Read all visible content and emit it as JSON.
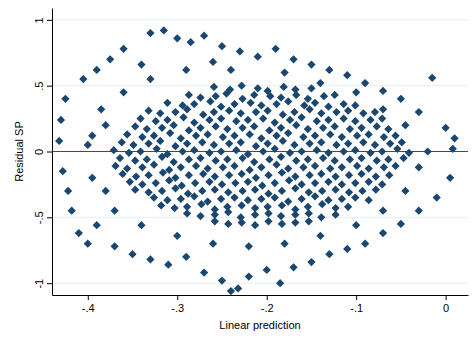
{
  "chart_data": {
    "type": "scatter",
    "xlabel": "Linear prediction",
    "ylabel": "Residual SP",
    "xlim": [
      -0.44,
      0.025
    ],
    "ylim": [
      -1.09,
      1.09
    ],
    "xticks": [
      {
        "value": -0.4,
        "label": "-.4"
      },
      {
        "value": -0.3,
        "label": "-.3"
      },
      {
        "value": -0.2,
        "label": "-.2"
      },
      {
        "value": -0.1,
        "label": "-.1"
      },
      0
    ],
    "yticks": [
      -1,
      {
        "value": -0.5,
        "label": "-.5"
      },
      0,
      {
        "value": 0.5,
        "label": ".5"
      },
      1
    ],
    "grid": true,
    "series": [
      {
        "type": "line",
        "line_style": "solid",
        "color": "#c8102e",
        "x": [
          -0.44,
          0.025
        ],
        "values": [
          0,
          0
        ]
      },
      {
        "type": "scatter",
        "marker": "diamond",
        "color": "#1a476f",
        "x": [
          -0.259,
          -0.241,
          -0.228,
          -0.21,
          -0.199,
          -0.181,
          -0.168,
          -0.15,
          -0.287,
          -0.274,
          -0.257,
          -0.245,
          -0.227,
          -0.214,
          -0.196,
          -0.184,
          -0.167,
          -0.154,
          -0.136,
          -0.124,
          -0.311,
          -0.294,
          -0.281,
          -0.263,
          -0.251,
          -0.236,
          -0.218,
          -0.206,
          -0.189,
          -0.176,
          -0.158,
          -0.146,
          -0.131,
          -0.114,
          -0.101,
          -0.332,
          -0.319,
          -0.302,
          -0.289,
          -0.271,
          -0.259,
          -0.242,
          -0.229,
          -0.212,
          -0.199,
          -0.182,
          -0.169,
          -0.152,
          -0.139,
          -0.122,
          -0.109,
          -0.092,
          -0.079,
          -0.341,
          -0.324,
          -0.311,
          -0.293,
          -0.281,
          -0.264,
          -0.251,
          -0.234,
          -0.221,
          -0.204,
          -0.191,
          -0.174,
          -0.161,
          -0.144,
          -0.131,
          -0.114,
          -0.101,
          -0.084,
          -0.071,
          -0.347,
          -0.334,
          -0.317,
          -0.304,
          -0.287,
          -0.274,
          -0.257,
          -0.244,
          -0.227,
          -0.214,
          -0.197,
          -0.184,
          -0.167,
          -0.154,
          -0.137,
          -0.124,
          -0.107,
          -0.094,
          -0.077,
          -0.064,
          -0.356,
          -0.339,
          -0.326,
          -0.308,
          -0.296,
          -0.279,
          -0.266,
          -0.249,
          -0.236,
          -0.219,
          -0.206,
          -0.189,
          -0.176,
          -0.159,
          -0.146,
          -0.129,
          -0.116,
          -0.099,
          -0.086,
          -0.069,
          -0.056,
          -0.362,
          -0.349,
          -0.332,
          -0.319,
          -0.302,
          -0.289,
          -0.272,
          -0.259,
          -0.242,
          -0.229,
          -0.212,
          -0.199,
          -0.182,
          -0.169,
          -0.152,
          -0.139,
          -0.122,
          -0.109,
          -0.092,
          -0.079,
          -0.062,
          -0.049,
          -0.371,
          -0.354,
          -0.341,
          -0.323,
          -0.311,
          -0.294,
          -0.281,
          -0.264,
          -0.251,
          -0.234,
          -0.221,
          -0.204,
          -0.191,
          -0.174,
          -0.161,
          -0.144,
          -0.131,
          -0.114,
          -0.101,
          -0.084,
          -0.071,
          -0.054,
          -0.041,
          -0.364,
          -0.347,
          -0.334,
          -0.317,
          -0.304,
          -0.287,
          -0.274,
          -0.257,
          -0.244,
          -0.227,
          -0.214,
          -0.197,
          -0.184,
          -0.167,
          -0.154,
          -0.137,
          -0.124,
          -0.107,
          -0.094,
          -0.077,
          -0.064,
          -0.047,
          -0.369,
          -0.356,
          -0.339,
          -0.326,
          -0.309,
          -0.296,
          -0.279,
          -0.266,
          -0.249,
          -0.236,
          -0.219,
          -0.206,
          -0.189,
          -0.176,
          -0.159,
          -0.146,
          -0.129,
          -0.116,
          -0.099,
          -0.086,
          -0.069,
          -0.056,
          -0.361,
          -0.346,
          -0.332,
          -0.316,
          -0.302,
          -0.287,
          -0.271,
          -0.258,
          -0.242,
          -0.228,
          -0.212,
          -0.198,
          -0.183,
          -0.168,
          -0.152,
          -0.139,
          -0.123,
          -0.108,
          -0.094,
          -0.078,
          -0.063,
          -0.353,
          -0.339,
          -0.324,
          -0.309,
          -0.295,
          -0.28,
          -0.264,
          -0.25,
          -0.235,
          -0.221,
          -0.205,
          -0.191,
          -0.175,
          -0.161,
          -0.146,
          -0.131,
          -0.116,
          -0.101,
          -0.086,
          -0.071,
          -0.347,
          -0.332,
          -0.317,
          -0.302,
          -0.288,
          -0.272,
          -0.258,
          -0.243,
          -0.227,
          -0.213,
          -0.198,
          -0.183,
          -0.168,
          -0.153,
          -0.138,
          -0.123,
          -0.108,
          -0.093,
          -0.078,
          -0.326,
          -0.311,
          -0.296,
          -0.281,
          -0.266,
          -0.251,
          -0.236,
          -0.221,
          -0.206,
          -0.191,
          -0.176,
          -0.161,
          -0.146,
          -0.131,
          -0.116,
          -0.101,
          -0.086,
          -0.318,
          -0.303,
          -0.289,
          -0.273,
          -0.258,
          -0.244,
          -0.228,
          -0.213,
          -0.199,
          -0.183,
          -0.168,
          -0.154,
          -0.138,
          -0.123,
          -0.109,
          -0.289,
          -0.274,
          -0.258,
          -0.243,
          -0.229,
          -0.213,
          -0.198,
          -0.184,
          -0.168,
          -0.153,
          -0.139,
          -0.123,
          -0.258,
          -0.243,
          -0.228,
          -0.213,
          -0.198,
          -0.183,
          -0.168,
          -0.153,
          -0.33,
          -0.315,
          -0.3,
          -0.285,
          -0.27,
          -0.25,
          -0.23,
          -0.21,
          -0.36,
          -0.375,
          -0.39,
          -0.405,
          -0.17,
          -0.15,
          -0.13,
          -0.11,
          -0.09,
          -0.07,
          -0.05,
          -0.015,
          -0.03,
          0,
          0.01,
          -0.19,
          -0.26,
          -0.34,
          -0.425,
          -0.43,
          -0.432,
          -0.428,
          -0.422,
          -0.418,
          -0.41,
          -0.4,
          -0.39,
          -0.385,
          -0.395,
          -0.37,
          -0.35,
          -0.33,
          -0.31,
          -0.29,
          -0.27,
          -0.25,
          -0.24,
          -0.232,
          -0.22,
          -0.2,
          -0.185,
          -0.17,
          -0.15,
          -0.13,
          -0.11,
          -0.09,
          -0.07,
          -0.05,
          -0.03,
          -0.01,
          0.005,
          -0.02,
          0.008,
          -0.38,
          -0.38,
          -0.4,
          -0.36,
          -0.33,
          -0.29,
          -0.24,
          -0.18,
          -0.14,
          -0.1,
          -0.07,
          -0.045,
          -0.03,
          -0.045,
          -0.07,
          -0.1,
          -0.14,
          -0.18,
          -0.22,
          -0.26,
          -0.3,
          -0.34,
          -0.37,
          -0.395
        ],
        "values": [
          0.49,
          0.47,
          0.5,
          0.48,
          0.46,
          0.49,
          0.47,
          0.48,
          0.43,
          0.41,
          0.42,
          0.44,
          0.4,
          0.43,
          0.42,
          0.41,
          0.43,
          0.4,
          0.42,
          0.43,
          0.37,
          0.35,
          0.36,
          0.38,
          0.34,
          0.36,
          0.37,
          0.35,
          0.36,
          0.38,
          0.35,
          0.37,
          0.34,
          0.36,
          0.35,
          0.31,
          0.29,
          0.3,
          0.32,
          0.28,
          0.3,
          0.31,
          0.29,
          0.3,
          0.31,
          0.28,
          0.3,
          0.32,
          0.29,
          0.3,
          0.31,
          0.29,
          0.3,
          0.25,
          0.23,
          0.24,
          0.26,
          0.22,
          0.24,
          0.25,
          0.23,
          0.24,
          0.25,
          0.22,
          0.24,
          0.26,
          0.23,
          0.24,
          0.25,
          0.23,
          0.24,
          0.25,
          0.19,
          0.17,
          0.18,
          0.2,
          0.16,
          0.18,
          0.19,
          0.17,
          0.18,
          0.19,
          0.16,
          0.18,
          0.2,
          0.17,
          0.18,
          0.19,
          0.17,
          0.18,
          0.19,
          0.17,
          0.13,
          0.11,
          0.12,
          0.14,
          0.1,
          0.12,
          0.13,
          0.11,
          0.12,
          0.13,
          0.1,
          0.12,
          0.14,
          0.11,
          0.12,
          0.13,
          0.11,
          0.12,
          0.13,
          0.11,
          0.12,
          0.07,
          0.05,
          0.06,
          0.08,
          0.04,
          0.06,
          0.07,
          0.05,
          0.06,
          0.07,
          0.04,
          0.06,
          0.08,
          0.05,
          0.06,
          0.07,
          0.05,
          0.06,
          0.07,
          0.05,
          0.06,
          0.07,
          0.01,
          -0.01,
          0,
          0.02,
          -0.02,
          0,
          0.01,
          -0.01,
          0,
          0.01,
          -0.02,
          0,
          0.02,
          -0.01,
          0,
          0.01,
          -0.01,
          0,
          0.01,
          -0.01,
          0,
          0.02,
          -0.01,
          -0.05,
          -0.07,
          -0.06,
          -0.04,
          -0.08,
          -0.06,
          -0.05,
          -0.07,
          -0.06,
          -0.05,
          -0.08,
          -0.06,
          -0.04,
          -0.07,
          -0.06,
          -0.05,
          -0.07,
          -0.06,
          -0.05,
          -0.07,
          -0.06,
          -0.05,
          -0.11,
          -0.13,
          -0.12,
          -0.1,
          -0.14,
          -0.12,
          -0.11,
          -0.13,
          -0.12,
          -0.11,
          -0.14,
          -0.12,
          -0.1,
          -0.13,
          -0.12,
          -0.11,
          -0.13,
          -0.12,
          -0.11,
          -0.13,
          -0.12,
          -0.11,
          -0.17,
          -0.19,
          -0.18,
          -0.16,
          -0.2,
          -0.18,
          -0.17,
          -0.19,
          -0.18,
          -0.17,
          -0.2,
          -0.18,
          -0.16,
          -0.19,
          -0.18,
          -0.17,
          -0.19,
          -0.18,
          -0.17,
          -0.19,
          -0.18,
          -0.23,
          -0.25,
          -0.24,
          -0.22,
          -0.26,
          -0.24,
          -0.23,
          -0.25,
          -0.24,
          -0.23,
          -0.26,
          -0.24,
          -0.22,
          -0.25,
          -0.24,
          -0.23,
          -0.25,
          -0.24,
          -0.23,
          -0.25,
          -0.29,
          -0.31,
          -0.3,
          -0.28,
          -0.32,
          -0.3,
          -0.29,
          -0.31,
          -0.3,
          -0.29,
          -0.32,
          -0.3,
          -0.28,
          -0.31,
          -0.3,
          -0.29,
          -0.31,
          -0.3,
          -0.29,
          -0.35,
          -0.37,
          -0.36,
          -0.34,
          -0.38,
          -0.36,
          -0.35,
          -0.37,
          -0.36,
          -0.35,
          -0.38,
          -0.36,
          -0.34,
          -0.37,
          -0.36,
          -0.35,
          -0.37,
          -0.41,
          -0.43,
          -0.42,
          -0.4,
          -0.44,
          -0.42,
          -0.41,
          -0.43,
          -0.42,
          -0.41,
          -0.44,
          -0.42,
          -0.4,
          -0.43,
          -0.42,
          -0.47,
          -0.49,
          -0.48,
          -0.46,
          -0.5,
          -0.48,
          -0.47,
          -0.49,
          -0.48,
          -0.47,
          -0.5,
          -0.48,
          -0.53,
          -0.55,
          -0.54,
          -0.56,
          -0.53,
          -0.55,
          -0.54,
          -0.53,
          0.9,
          0.92,
          0.86,
          0.83,
          0.88,
          0.8,
          0.76,
          0.72,
          0.78,
          0.7,
          0.62,
          0.55,
          0.7,
          0.66,
          0.62,
          0.58,
          0.52,
          0.46,
          0.4,
          0.56,
          0.3,
          0.18,
          0.1,
          0.78,
          0.68,
          0.66,
          0.4,
          0.24,
          0.08,
          -0.15,
          -0.3,
          -0.45,
          -0.62,
          -0.7,
          -0.56,
          0.32,
          -0.2,
          -0.72,
          -0.78,
          -0.82,
          -0.86,
          -0.8,
          -0.92,
          -0.98,
          -1.06,
          -1.04,
          -0.95,
          -0.9,
          -1,
          -0.88,
          -0.84,
          -0.78,
          -0.74,
          -0.7,
          -0.62,
          -0.55,
          -0.45,
          -0.35,
          -0.2,
          0,
          0.02,
          0.2,
          -0.3,
          0.05,
          0.45,
          0.55,
          0.62,
          0.62,
          0.6,
          0.52,
          0.45,
          0.32,
          0.2,
          -0.12,
          -0.3,
          -0.45,
          -0.56,
          -0.64,
          -0.7,
          -0.72,
          -0.7,
          -0.64,
          -0.56,
          -0.45,
          0.12
        ]
      }
    ]
  }
}
